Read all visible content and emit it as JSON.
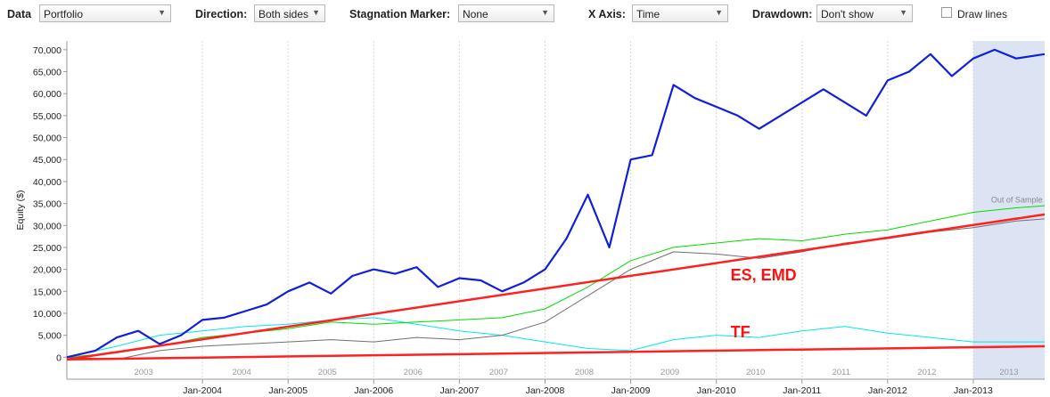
{
  "toolbar": {
    "data_label": "Data",
    "data_value": "Portfolio",
    "direction_label": "Direction:",
    "direction_value": "Both sides",
    "stagnation_label": "Stagnation Marker:",
    "stagnation_value": "None",
    "xaxis_label": "X Axis:",
    "xaxis_value": "Time",
    "drawdown_label": "Drawdown:",
    "drawdown_value": "Don't show",
    "drawlines_label": "Draw lines",
    "drawlines_checked": false,
    "dropdown_icon": "chevron-down-icon"
  },
  "chart_data": {
    "type": "line",
    "ylabel": "Equity ($)",
    "ylim": [
      -5000,
      72000
    ],
    "yticks": [
      0,
      5000,
      10000,
      15000,
      20000,
      25000,
      30000,
      35000,
      40000,
      45000,
      50000,
      55000,
      60000,
      65000,
      70000
    ],
    "ytick_labels": [
      "0",
      "5,000",
      "10,000",
      "15,000",
      "20,000",
      "25,000",
      "30,000",
      "35,000",
      "40,000",
      "45,000",
      "50,000",
      "55,000",
      "60,000",
      "65,000",
      "70,000"
    ],
    "xlim": [
      "2002-06",
      "2013-11"
    ],
    "xticks": [
      "2004-01",
      "2005-01",
      "2006-01",
      "2007-01",
      "2008-01",
      "2009-01",
      "2010-01",
      "2011-01",
      "2012-01",
      "2013-01"
    ],
    "xtick_labels": [
      "Jan-2004",
      "Jan-2005",
      "Jan-2006",
      "Jan-2007",
      "Jan-2008",
      "Jan-2009",
      "Jan-2010",
      "Jan-2011",
      "Jan-2012",
      "Jan-2013"
    ],
    "year_labels": [
      "2003",
      "2004",
      "2005",
      "2006",
      "2007",
      "2008",
      "2009",
      "2010",
      "2011",
      "2012",
      "2013"
    ],
    "out_of_sample": {
      "start": "2013-01",
      "end": "2013-11",
      "label": "Out of Sample",
      "color": "#dce3f3"
    },
    "grid": "vertical",
    "series": [
      {
        "color": "#1020d8",
        "points": [
          [
            "2002-06",
            0
          ],
          [
            "2002-10",
            1500
          ],
          [
            "2003-01",
            4500
          ],
          [
            "2003-04",
            6000
          ],
          [
            "2003-07",
            3000
          ],
          [
            "2003-10",
            5000
          ],
          [
            "2004-01",
            8500
          ],
          [
            "2004-04",
            9000
          ],
          [
            "2004-07",
            10500
          ],
          [
            "2004-10",
            12000
          ],
          [
            "2005-01",
            15000
          ],
          [
            "2005-04",
            17000
          ],
          [
            "2005-07",
            14500
          ],
          [
            "2005-10",
            18500
          ],
          [
            "2006-01",
            20000
          ],
          [
            "2006-04",
            19000
          ],
          [
            "2006-07",
            20500
          ],
          [
            "2006-10",
            16000
          ],
          [
            "2007-01",
            18000
          ],
          [
            "2007-04",
            17500
          ],
          [
            "2007-07",
            15000
          ],
          [
            "2007-10",
            17000
          ],
          [
            "2008-01",
            20000
          ],
          [
            "2008-04",
            27000
          ],
          [
            "2008-07",
            37000
          ],
          [
            "2008-10",
            25000
          ],
          [
            "2009-01",
            45000
          ],
          [
            "2009-04",
            46000
          ],
          [
            "2009-07",
            62000
          ],
          [
            "2009-10",
            59000
          ],
          [
            "2010-01",
            57000
          ],
          [
            "2010-04",
            55000
          ],
          [
            "2010-07",
            52000
          ],
          [
            "2010-10",
            55000
          ],
          [
            "2011-01",
            58000
          ],
          [
            "2011-04",
            61000
          ],
          [
            "2011-07",
            58000
          ],
          [
            "2011-10",
            55000
          ],
          [
            "2012-01",
            63000
          ],
          [
            "2012-04",
            65000
          ],
          [
            "2012-07",
            69000
          ],
          [
            "2012-10",
            64000
          ],
          [
            "2013-01",
            68000
          ],
          [
            "2013-04",
            70000
          ],
          [
            "2013-07",
            68000
          ],
          [
            "2013-11",
            69000
          ]
        ]
      },
      {
        "color": "#00dd00",
        "points": [
          [
            "2002-06",
            0
          ],
          [
            "2003-01",
            1000
          ],
          [
            "2003-07",
            2500
          ],
          [
            "2004-01",
            4500
          ],
          [
            "2004-07",
            5500
          ],
          [
            "2005-01",
            6500
          ],
          [
            "2005-07",
            8000
          ],
          [
            "2006-01",
            7500
          ],
          [
            "2006-07",
            8000
          ],
          [
            "2007-01",
            8500
          ],
          [
            "2007-07",
            9000
          ],
          [
            "2008-01",
            11000
          ],
          [
            "2008-07",
            16000
          ],
          [
            "2009-01",
            22000
          ],
          [
            "2009-07",
            25000
          ],
          [
            "2010-01",
            26000
          ],
          [
            "2010-07",
            27000
          ],
          [
            "2011-01",
            26500
          ],
          [
            "2011-07",
            28000
          ],
          [
            "2012-01",
            29000
          ],
          [
            "2012-07",
            31000
          ],
          [
            "2013-01",
            33000
          ],
          [
            "2013-07",
            34000
          ],
          [
            "2013-11",
            34500
          ]
        ]
      },
      {
        "color": "#707070",
        "points": [
          [
            "2002-06",
            0
          ],
          [
            "2003-01",
            -500
          ],
          [
            "2003-07",
            1500
          ],
          [
            "2004-01",
            2500
          ],
          [
            "2004-07",
            3000
          ],
          [
            "2005-01",
            3500
          ],
          [
            "2005-07",
            4000
          ],
          [
            "2006-01",
            3500
          ],
          [
            "2006-07",
            4500
          ],
          [
            "2007-01",
            4000
          ],
          [
            "2007-07",
            5000
          ],
          [
            "2008-01",
            8000
          ],
          [
            "2008-07",
            14000
          ],
          [
            "2009-01",
            20000
          ],
          [
            "2009-07",
            24000
          ],
          [
            "2010-01",
            23500
          ],
          [
            "2010-07",
            22500
          ],
          [
            "2011-01",
            24000
          ],
          [
            "2011-07",
            26000
          ],
          [
            "2012-01",
            27000
          ],
          [
            "2012-07",
            28500
          ],
          [
            "2013-01",
            29500
          ],
          [
            "2013-07",
            31000
          ],
          [
            "2013-11",
            31500
          ]
        ]
      },
      {
        "color": "#00e8e8",
        "points": [
          [
            "2002-06",
            0
          ],
          [
            "2003-01",
            2500
          ],
          [
            "2003-07",
            5000
          ],
          [
            "2004-01",
            6000
          ],
          [
            "2004-07",
            7000
          ],
          [
            "2005-01",
            7500
          ],
          [
            "2005-07",
            8500
          ],
          [
            "2006-01",
            9000
          ],
          [
            "2006-07",
            7500
          ],
          [
            "2007-01",
            6000
          ],
          [
            "2007-07",
            5000
          ],
          [
            "2008-01",
            3500
          ],
          [
            "2008-07",
            2000
          ],
          [
            "2009-01",
            1500
          ],
          [
            "2009-07",
            4000
          ],
          [
            "2010-01",
            5000
          ],
          [
            "2010-07",
            4500
          ],
          [
            "2011-01",
            6000
          ],
          [
            "2011-07",
            7000
          ],
          [
            "2012-01",
            5500
          ],
          [
            "2012-07",
            4500
          ],
          [
            "2013-01",
            3500
          ],
          [
            "2013-07",
            3500
          ],
          [
            "2013-11",
            3500
          ]
        ]
      },
      {
        "color": "#ff2020",
        "points": [
          [
            "2002-06",
            -500
          ],
          [
            "2013-11",
            32500
          ]
        ]
      },
      {
        "color": "#ff2020",
        "points": [
          [
            "2002-06",
            -500
          ],
          [
            "2013-11",
            2500
          ]
        ]
      }
    ],
    "annotations": [
      {
        "text": "ES, EMD",
        "x": "2010-03",
        "y": 17500,
        "color": "#ff1010"
      },
      {
        "text": "TF",
        "x": "2010-03",
        "y": 4500,
        "color": "#ff1010"
      }
    ]
  }
}
